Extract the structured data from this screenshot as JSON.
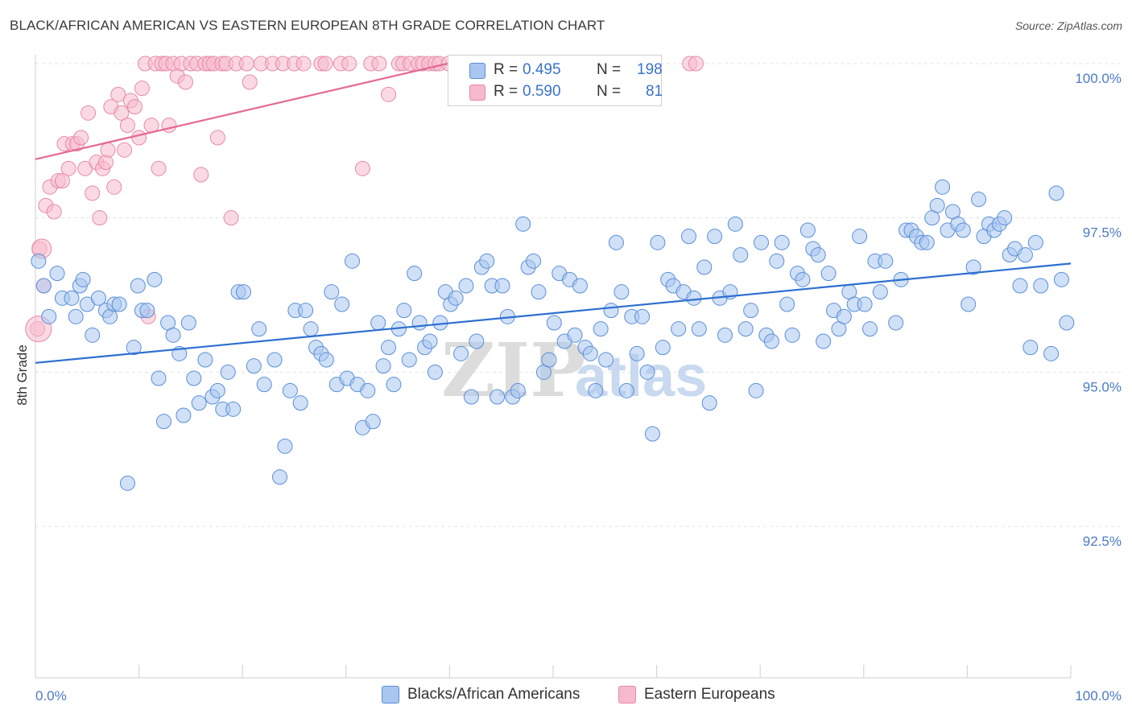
{
  "title": "BLACK/AFRICAN AMERICAN VS EASTERN EUROPEAN 8TH GRADE CORRELATION CHART",
  "source": "Source: ZipAtlas.com",
  "watermark": {
    "zip": "ZIP",
    "atlas": "atlas"
  },
  "colors": {
    "blue_fill": "#a9c6f0",
    "blue_stroke": "#5a8fd6",
    "blue_line": "#2d6fd1",
    "pink_fill": "#f7b9cc",
    "pink_stroke": "#e68aa8",
    "pink_line": "#e46a93",
    "tick_text": "#4b7bc4",
    "grid": "#e3e3e3"
  },
  "legend": {
    "rows": [
      {
        "r_label": "R = ",
        "r_value": "0.495",
        "n_label": "N = ",
        "n_value": "198"
      },
      {
        "r_label": "R = ",
        "r_value": "0.590",
        "n_label": "N = ",
        "n_value": "81"
      }
    ]
  },
  "bottom_legend": [
    "Blacks/African Americans",
    "Eastern Europeans"
  ],
  "chart_data": {
    "type": "scatter",
    "title": "BLACK/AFRICAN AMERICAN VS EASTERN EUROPEAN 8TH GRADE CORRELATION CHART",
    "xlabel": "",
    "ylabel": "8th Grade",
    "xlim": [
      0,
      100
    ],
    "ylim": [
      89.8,
      100.2
    ],
    "x_tick_labels": [
      "0.0%",
      "100.0%"
    ],
    "y_ticks": [
      92.5,
      95.0,
      97.5,
      100.0
    ],
    "y_tick_labels": [
      "92.5%",
      "95.0%",
      "97.5%",
      "100.0%"
    ],
    "grid": "horizontal dashed",
    "legend_position": "top-center",
    "series": [
      {
        "name": "Blacks/African Americans",
        "r": 0.495,
        "n": 198,
        "trend": [
          [
            0,
            95.15
          ],
          [
            100,
            96.76
          ]
        ],
        "points": [
          [
            0.3,
            96.8
          ],
          [
            0.8,
            96.4
          ],
          [
            1.3,
            95.9
          ],
          [
            2.1,
            96.6
          ],
          [
            2.6,
            96.2
          ],
          [
            3.5,
            96.2
          ],
          [
            3.9,
            95.9
          ],
          [
            4.3,
            96.4
          ],
          [
            4.6,
            96.5
          ],
          [
            5.0,
            96.1
          ],
          [
            5.5,
            95.6
          ],
          [
            6.1,
            96.2
          ],
          [
            6.8,
            96.0
          ],
          [
            7.2,
            95.9
          ],
          [
            7.6,
            96.1
          ],
          [
            8.1,
            96.1
          ],
          [
            8.9,
            93.2
          ],
          [
            9.5,
            95.4
          ],
          [
            9.9,
            96.4
          ],
          [
            10.3,
            96.0
          ],
          [
            10.8,
            96.0
          ],
          [
            11.5,
            96.5
          ],
          [
            11.9,
            94.9
          ],
          [
            12.4,
            94.2
          ],
          [
            12.8,
            95.8
          ],
          [
            13.3,
            95.6
          ],
          [
            13.9,
            95.3
          ],
          [
            14.3,
            94.3
          ],
          [
            14.8,
            95.8
          ],
          [
            15.3,
            94.9
          ],
          [
            15.8,
            94.5
          ],
          [
            16.4,
            95.2
          ],
          [
            17.1,
            94.6
          ],
          [
            17.6,
            94.7
          ],
          [
            18.1,
            94.4
          ],
          [
            18.6,
            95.0
          ],
          [
            19.1,
            94.4
          ],
          [
            19.6,
            96.3
          ],
          [
            20.1,
            96.3
          ],
          [
            21.1,
            95.1
          ],
          [
            21.6,
            95.7
          ],
          [
            22.1,
            94.8
          ],
          [
            23.1,
            95.2
          ],
          [
            23.6,
            93.3
          ],
          [
            24.1,
            93.8
          ],
          [
            24.6,
            94.7
          ],
          [
            25.1,
            96.0
          ],
          [
            25.6,
            94.5
          ],
          [
            26.1,
            96.0
          ],
          [
            26.6,
            95.7
          ],
          [
            27.1,
            95.4
          ],
          [
            27.6,
            95.3
          ],
          [
            28.1,
            95.2
          ],
          [
            28.6,
            96.3
          ],
          [
            29.1,
            94.8
          ],
          [
            29.6,
            96.1
          ],
          [
            30.1,
            94.9
          ],
          [
            30.6,
            96.8
          ],
          [
            31.1,
            94.8
          ],
          [
            31.6,
            94.1
          ],
          [
            32.1,
            94.7
          ],
          [
            32.6,
            94.2
          ],
          [
            33.1,
            95.8
          ],
          [
            33.6,
            95.1
          ],
          [
            34.1,
            95.4
          ],
          [
            34.6,
            94.8
          ],
          [
            35.1,
            95.7
          ],
          [
            35.6,
            96.0
          ],
          [
            36.1,
            95.2
          ],
          [
            36.6,
            96.6
          ],
          [
            37.1,
            95.8
          ],
          [
            37.6,
            95.4
          ],
          [
            38.1,
            95.5
          ],
          [
            38.6,
            95.0
          ],
          [
            39.1,
            95.8
          ],
          [
            39.6,
            96.3
          ],
          [
            40.1,
            96.1
          ],
          [
            40.6,
            96.2
          ],
          [
            41.1,
            95.3
          ],
          [
            41.6,
            96.4
          ],
          [
            42.1,
            94.6
          ],
          [
            42.6,
            95.5
          ],
          [
            43.1,
            96.7
          ],
          [
            43.6,
            96.8
          ],
          [
            44.1,
            96.4
          ],
          [
            44.6,
            94.6
          ],
          [
            45.1,
            96.4
          ],
          [
            45.6,
            95.9
          ],
          [
            46.1,
            94.6
          ],
          [
            46.6,
            94.7
          ],
          [
            47.1,
            97.4
          ],
          [
            47.6,
            96.7
          ],
          [
            48.1,
            96.8
          ],
          [
            48.6,
            96.3
          ],
          [
            49.1,
            95.0
          ],
          [
            49.6,
            95.2
          ],
          [
            50.1,
            95.8
          ],
          [
            50.6,
            96.6
          ],
          [
            51.1,
            95.5
          ],
          [
            51.6,
            96.5
          ],
          [
            52.1,
            95.6
          ],
          [
            52.6,
            96.4
          ],
          [
            53.1,
            95.4
          ],
          [
            53.6,
            95.3
          ],
          [
            54.1,
            94.7
          ],
          [
            54.6,
            95.7
          ],
          [
            55.1,
            95.2
          ],
          [
            55.6,
            96.0
          ],
          [
            56.1,
            97.1
          ],
          [
            56.6,
            96.3
          ],
          [
            57.1,
            94.7
          ],
          [
            57.6,
            95.9
          ],
          [
            58.1,
            95.3
          ],
          [
            58.6,
            95.9
          ],
          [
            59.1,
            95.0
          ],
          [
            59.6,
            94.0
          ],
          [
            60.1,
            97.1
          ],
          [
            60.6,
            95.4
          ],
          [
            61.1,
            96.5
          ],
          [
            61.6,
            96.4
          ],
          [
            62.1,
            95.7
          ],
          [
            62.6,
            96.3
          ],
          [
            63.1,
            97.2
          ],
          [
            63.6,
            96.2
          ],
          [
            64.1,
            95.7
          ],
          [
            64.6,
            96.7
          ],
          [
            65.1,
            94.5
          ],
          [
            65.6,
            97.2
          ],
          [
            66.1,
            96.2
          ],
          [
            66.6,
            95.6
          ],
          [
            67.1,
            96.3
          ],
          [
            67.6,
            97.4
          ],
          [
            68.1,
            96.9
          ],
          [
            68.6,
            95.7
          ],
          [
            69.1,
            96.0
          ],
          [
            69.6,
            94.7
          ],
          [
            70.1,
            97.1
          ],
          [
            70.6,
            95.6
          ],
          [
            71.1,
            95.5
          ],
          [
            71.6,
            96.8
          ],
          [
            72.1,
            97.1
          ],
          [
            72.6,
            96.1
          ],
          [
            73.1,
            95.6
          ],
          [
            73.6,
            96.6
          ],
          [
            74.1,
            96.5
          ],
          [
            74.6,
            97.3
          ],
          [
            75.1,
            97.0
          ],
          [
            75.6,
            96.9
          ],
          [
            76.1,
            95.5
          ],
          [
            76.6,
            96.6
          ],
          [
            77.1,
            96.0
          ],
          [
            77.6,
            95.7
          ],
          [
            78.1,
            95.9
          ],
          [
            78.6,
            96.3
          ],
          [
            79.1,
            96.1
          ],
          [
            79.6,
            97.2
          ],
          [
            80.1,
            96.1
          ],
          [
            80.6,
            95.7
          ],
          [
            81.1,
            96.8
          ],
          [
            81.6,
            96.3
          ],
          [
            82.1,
            96.8
          ],
          [
            83.1,
            95.8
          ],
          [
            83.6,
            96.5
          ],
          [
            84.1,
            97.3
          ],
          [
            84.6,
            97.3
          ],
          [
            85.1,
            97.2
          ],
          [
            85.6,
            97.1
          ],
          [
            86.1,
            97.1
          ],
          [
            86.6,
            97.5
          ],
          [
            87.1,
            97.7
          ],
          [
            87.6,
            98.0
          ],
          [
            88.1,
            97.3
          ],
          [
            88.6,
            97.6
          ],
          [
            89.1,
            97.4
          ],
          [
            89.6,
            97.3
          ],
          [
            90.1,
            96.1
          ],
          [
            90.6,
            96.7
          ],
          [
            91.1,
            97.8
          ],
          [
            91.6,
            97.2
          ],
          [
            92.1,
            97.4
          ],
          [
            92.6,
            97.3
          ],
          [
            93.1,
            97.4
          ],
          [
            93.6,
            97.5
          ],
          [
            94.1,
            96.9
          ],
          [
            94.6,
            97.0
          ],
          [
            95.1,
            96.4
          ],
          [
            95.6,
            96.9
          ],
          [
            96.1,
            95.4
          ],
          [
            96.6,
            97.1
          ],
          [
            97.1,
            96.4
          ],
          [
            98.1,
            95.3
          ],
          [
            98.6,
            97.9
          ],
          [
            99.1,
            96.5
          ],
          [
            99.6,
            95.8
          ]
        ]
      },
      {
        "name": "Eastern Europeans",
        "r": 0.59,
        "n": 81,
        "trend": [
          [
            0,
            98.45
          ],
          [
            39.8,
            100.0
          ]
        ],
        "points": [
          [
            0.2,
            95.7
          ],
          [
            0.4,
            97.0
          ],
          [
            0.8,
            96.4
          ],
          [
            1.0,
            97.7
          ],
          [
            1.4,
            98.0
          ],
          [
            1.8,
            97.6
          ],
          [
            2.2,
            98.1
          ],
          [
            2.6,
            98.1
          ],
          [
            2.8,
            98.7
          ],
          [
            3.2,
            98.3
          ],
          [
            3.6,
            98.7
          ],
          [
            4.0,
            98.7
          ],
          [
            4.4,
            98.8
          ],
          [
            4.8,
            98.3
          ],
          [
            5.1,
            99.2
          ],
          [
            5.5,
            97.9
          ],
          [
            5.9,
            98.4
          ],
          [
            6.2,
            97.5
          ],
          [
            6.5,
            98.3
          ],
          [
            6.8,
            98.4
          ],
          [
            7.0,
            98.6
          ],
          [
            7.3,
            99.3
          ],
          [
            7.6,
            98.0
          ],
          [
            8.0,
            99.5
          ],
          [
            8.3,
            99.2
          ],
          [
            8.6,
            98.6
          ],
          [
            8.9,
            99.0
          ],
          [
            9.2,
            99.4
          ],
          [
            9.6,
            99.3
          ],
          [
            10.0,
            98.8
          ],
          [
            10.3,
            99.6
          ],
          [
            10.6,
            100.0
          ],
          [
            10.9,
            95.9
          ],
          [
            11.2,
            99.0
          ],
          [
            11.6,
            100.0
          ],
          [
            11.9,
            98.3
          ],
          [
            12.2,
            100.0
          ],
          [
            12.6,
            100.0
          ],
          [
            12.9,
            99.0
          ],
          [
            13.3,
            100.0
          ],
          [
            13.7,
            99.8
          ],
          [
            14.1,
            100.0
          ],
          [
            14.5,
            99.7
          ],
          [
            15.0,
            100.0
          ],
          [
            15.6,
            100.0
          ],
          [
            16.0,
            98.2
          ],
          [
            16.4,
            100.0
          ],
          [
            16.8,
            100.0
          ],
          [
            17.2,
            100.0
          ],
          [
            17.6,
            98.8
          ],
          [
            18.0,
            100.0
          ],
          [
            18.4,
            100.0
          ],
          [
            18.9,
            97.5
          ],
          [
            19.4,
            100.0
          ],
          [
            20.4,
            100.0
          ],
          [
            20.7,
            99.7
          ],
          [
            21.8,
            100.0
          ],
          [
            22.9,
            100.0
          ],
          [
            23.9,
            100.0
          ],
          [
            25.0,
            100.0
          ],
          [
            25.9,
            100.0
          ],
          [
            27.6,
            100.0
          ],
          [
            28.0,
            100.0
          ],
          [
            29.5,
            100.0
          ],
          [
            30.3,
            100.0
          ],
          [
            31.6,
            98.3
          ],
          [
            32.4,
            100.0
          ],
          [
            33.2,
            100.0
          ],
          [
            34.1,
            99.5
          ],
          [
            35.1,
            100.0
          ],
          [
            35.5,
            100.0
          ],
          [
            36.2,
            100.0
          ],
          [
            37.0,
            100.0
          ],
          [
            37.4,
            100.0
          ],
          [
            38.0,
            100.0
          ],
          [
            38.6,
            100.0
          ],
          [
            39.0,
            100.0
          ],
          [
            39.9,
            100.0
          ],
          [
            40.6,
            100.0
          ],
          [
            63.2,
            100.0
          ],
          [
            63.8,
            100.0
          ]
        ]
      }
    ]
  }
}
